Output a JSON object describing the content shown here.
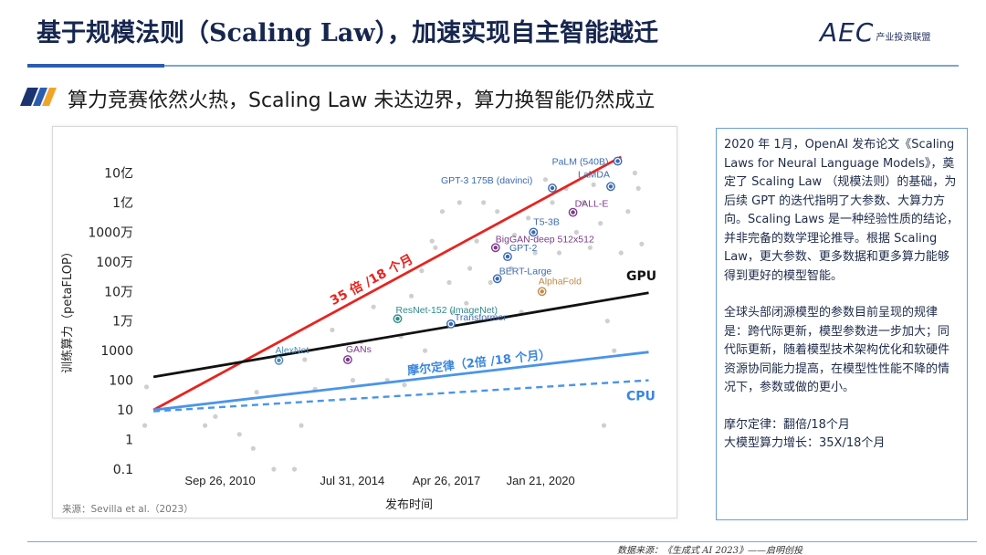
{
  "header": {
    "title": "基于规模法则（Scaling Law），加速实现自主智能越迁",
    "logo_mark": "AEC",
    "logo_text": "产业投资联盟"
  },
  "subtitle": "算力竞赛依然火热，Scaling Law 未达边界，算力换智能仍然成立",
  "sidebar": {
    "para1": "2020 年 1月，OpenAI 发布论文《Scaling Laws for Neural Language Models》，奠定了 Scaling Law （规模法则）的基础，为后续 GPT 的迭代指明了大参数、大算力方向。Scaling Laws 是一种经验性质的结论，并非完备的数学理论推导。根据 Scaling Law，更大参数、更多数据和更多算力能够得到更好的模型智能。",
    "para2": "全球头部闭源模型的参数目前呈现的规律是：跨代际更新，模型参数进一步加大；同代际更新，随着模型技术架构优化和软硬件资源协同能力提高，在模型性性能不降的情况下，参数或做的更小。",
    "note1": "摩尔定律：翻倍/18个月",
    "note2": "大模型算力增长：35X/18个月"
  },
  "footer": "数据来源：《生成式 AI 2023》——启明创投",
  "chart_data": {
    "type": "scatter",
    "title": "",
    "xlabel": "发布时间",
    "ylabel": "训练算力（petaFLOP）",
    "source": "来源：Sevilla et al.（2023）",
    "log_y": true,
    "xlim": [
      2008.4,
      2023.4
    ],
    "ylim": [
      0.1,
      10000000000
    ],
    "x_ticks": [
      {
        "value": 2010.74,
        "label": "Sep 26, 2010"
      },
      {
        "value": 2014.58,
        "label": "Jul 31, 2014"
      },
      {
        "value": 2017.32,
        "label": "Apr 26, 2017"
      },
      {
        "value": 2020.06,
        "label": "Jan 21, 2020"
      }
    ],
    "y_ticks": [
      {
        "value": 0.1,
        "label": "0.1"
      },
      {
        "value": 1,
        "label": "1"
      },
      {
        "value": 10,
        "label": "10"
      },
      {
        "value": 100,
        "label": "100"
      },
      {
        "value": 1000,
        "label": "1000"
      },
      {
        "value": 10000,
        "label": "1万"
      },
      {
        "value": 100000,
        "label": "10万"
      },
      {
        "value": 1000000,
        "label": "100万"
      },
      {
        "value": 10000000,
        "label": "1000万"
      },
      {
        "value": 100000000,
        "label": "1亿"
      },
      {
        "value": 1000000000,
        "label": "10亿"
      }
    ],
    "trend_lines": [
      {
        "name": "35 倍 /18 个月",
        "color": "#e8231f",
        "dashed": false,
        "x": [
          2008.8,
          2022.4
        ],
        "y": [
          10,
          3500000000
        ]
      },
      {
        "name": "GPU",
        "color": "#111111",
        "dashed": false,
        "x": [
          2008.8,
          2023.2
        ],
        "y": [
          130,
          90000
        ]
      },
      {
        "name": "摩尔定律（2倍 /18 个月）",
        "color": "#4a94ea",
        "dashed": false,
        "x": [
          2008.8,
          2023.2
        ],
        "y": [
          10,
          900
        ]
      },
      {
        "name": "CPU",
        "color": "#4a94ea",
        "dashed": true,
        "x": [
          2008.8,
          2023.2
        ],
        "y": [
          9,
          100
        ]
      }
    ],
    "models": [
      {
        "name": "AlexNet",
        "x": 2012.45,
        "y": 470,
        "color": "#4a8ab8"
      },
      {
        "name": "GANs",
        "x": 2014.45,
        "y": 500,
        "color": "#7a3a8a"
      },
      {
        "name": "ResNet-152 (ImageNet)",
        "x": 2015.9,
        "y": 12000,
        "color": "#2e8a8c"
      },
      {
        "name": "Transformer",
        "x": 2017.45,
        "y": 8000,
        "color": "#3a6ab0"
      },
      {
        "name": "BERT-Large",
        "x": 2018.8,
        "y": 270000,
        "color": "#3a6ab0"
      },
      {
        "name": "GPT-2",
        "x": 2019.1,
        "y": 1500000,
        "color": "#3a6ab0"
      },
      {
        "name": "BigGAN-deep 512x512",
        "x": 2018.75,
        "y": 3000000,
        "color": "#7a3a8a"
      },
      {
        "name": "T5-3B",
        "x": 2019.85,
        "y": 10000000,
        "color": "#3a6ab0"
      },
      {
        "name": "AlphaFold",
        "x": 2020.1,
        "y": 100000,
        "color": "#c08a4a"
      },
      {
        "name": "GPT-3 175B (davinci)",
        "x": 2020.4,
        "y": 310000000,
        "color": "#3a6ab0"
      },
      {
        "name": "DALL-E",
        "x": 2021.0,
        "y": 47000000,
        "color": "#7a3a8a"
      },
      {
        "name": "LaMDA",
        "x": 2022.1,
        "y": 350000000,
        "color": "#3a6ab0"
      },
      {
        "name": "PaLM (540B)",
        "x": 2022.3,
        "y": 2500000000,
        "color": "#3a6ab0"
      }
    ],
    "background_points": [
      [
        2008.6,
        60
      ],
      [
        2008.55,
        3
      ],
      [
        2010.3,
        3
      ],
      [
        2010.6,
        6
      ],
      [
        2011.3,
        1.5
      ],
      [
        2011.8,
        40
      ],
      [
        2011.7,
        0.5
      ],
      [
        2012.3,
        0.1
      ],
      [
        2012.9,
        0.05
      ],
      [
        2013.1,
        3
      ],
      [
        2013.5,
        50
      ],
      [
        2013.2,
        500
      ],
      [
        2014.0,
        5000
      ],
      [
        2014.6,
        100
      ],
      [
        2014.85,
        2000
      ],
      [
        2015.2,
        30000
      ],
      [
        2015.6,
        100
      ],
      [
        2016.0,
        3000
      ],
      [
        2016.1,
        70
      ],
      [
        2016.3,
        70000
      ],
      [
        2016.6,
        500000
      ],
      [
        2016.7,
        1000
      ],
      [
        2016.9,
        5000000
      ],
      [
        2017.0,
        3000000
      ],
      [
        2017.2,
        50000000
      ],
      [
        2017.4,
        200000
      ],
      [
        2017.5,
        20000
      ],
      [
        2017.7,
        100000000
      ],
      [
        2017.9,
        40000
      ],
      [
        2018.0,
        600000
      ],
      [
        2018.2,
        5000000
      ],
      [
        2018.4,
        100000000
      ],
      [
        2018.6,
        200000
      ],
      [
        2018.8,
        50000000
      ],
      [
        2019.2,
        600000
      ],
      [
        2019.3,
        8000000
      ],
      [
        2019.5,
        20000
      ],
      [
        2019.7,
        30000000
      ],
      [
        2019.9,
        2000000
      ],
      [
        2020.2,
        600000000
      ],
      [
        2020.4,
        100000000
      ],
      [
        2020.6,
        2000000
      ],
      [
        2020.8,
        300000000
      ],
      [
        2021.1,
        10000000
      ],
      [
        2021.3,
        100000000
      ],
      [
        2021.5,
        3000000
      ],
      [
        2021.6,
        400000000
      ],
      [
        2021.8,
        20000000
      ],
      [
        2021.9,
        3
      ],
      [
        2022.0,
        10000
      ],
      [
        2022.2,
        1000
      ],
      [
        2022.4,
        2000000
      ],
      [
        2022.6,
        50000000
      ],
      [
        2022.8,
        1000000000
      ],
      [
        2022.9,
        300000000
      ],
      [
        2023.0,
        4000000
      ]
    ]
  }
}
